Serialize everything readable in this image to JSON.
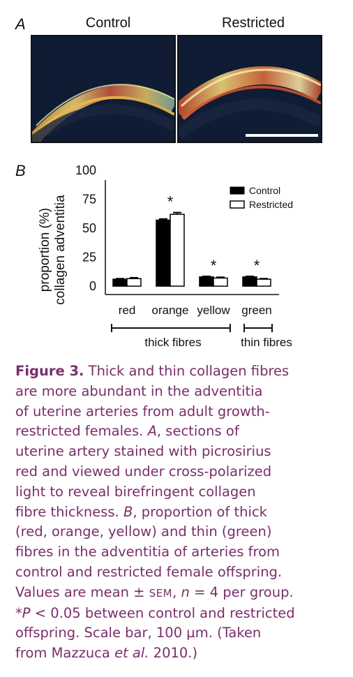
{
  "panel_a": {
    "letter": "A",
    "label_control": "Control",
    "label_restricted": "Restricted"
  },
  "panel_b": {
    "letter": "B"
  },
  "chart_data": {
    "type": "bar",
    "categories": [
      "red",
      "orange",
      "yellow",
      "green"
    ],
    "series": [
      {
        "name": "Control",
        "values": [
          6,
          57,
          8,
          8
        ],
        "errors": [
          0.5,
          1,
          0.5,
          0.5
        ],
        "color": "#000000"
      },
      {
        "name": "Restricted",
        "values": [
          6.5,
          62,
          7,
          6
        ],
        "errors": [
          0.8,
          1.5,
          0.7,
          0.5
        ],
        "color": "#ffffff"
      }
    ],
    "significant": [
      false,
      true,
      true,
      true
    ],
    "significance_marker": "*",
    "ylabel_line1": "proportion (%)",
    "ylabel_line2": "collagen adventitia",
    "yticks": [
      0,
      25,
      50,
      75,
      100
    ],
    "ylim": [
      0,
      100
    ],
    "groups": [
      {
        "label": "thick fibres",
        "categories": [
          "red",
          "orange",
          "yellow"
        ]
      },
      {
        "label": "thin fibres",
        "categories": [
          "green"
        ]
      }
    ],
    "legend_position": "top-right"
  },
  "caption": {
    "title": "Figure 3.",
    "line1_rest": " Thick and thin collagen fibres",
    "line2": "are more abundant in the adventitia",
    "line3": "of uterine arteries from adult growth-",
    "line4": "restricted females.",
    "line4_a": "A",
    "line4_rest": ", sections of",
    "line5": "uterine artery stained with picrosirius",
    "line6": "red and viewed under cross-polarized",
    "line7": "light to reveal birefringent collagen",
    "line8_pre": "fibre thickness.",
    "line8_b": "B",
    "line8_rest": ", proportion of thick",
    "line9": "(red, orange, yellow) and thin (green)",
    "line10": "fibres in the adventitia of arteries from",
    "line11": "control and restricted female offspring.",
    "line12_pre": "Values are mean ± ",
    "line12_sem": "SEM",
    "line12_mid": ", ",
    "line12_n": "n",
    "line12_rest": " = 4 per group.",
    "line13_star": "*",
    "line13_p": "P",
    "line13_rest": " < 0.05 between control and restricted",
    "line14": "offspring. Scale bar, 100 µm. (Taken",
    "line15_pre": "from Mazzuca ",
    "line15_etal": "et al.",
    "line15_rest": " 2010.)"
  }
}
